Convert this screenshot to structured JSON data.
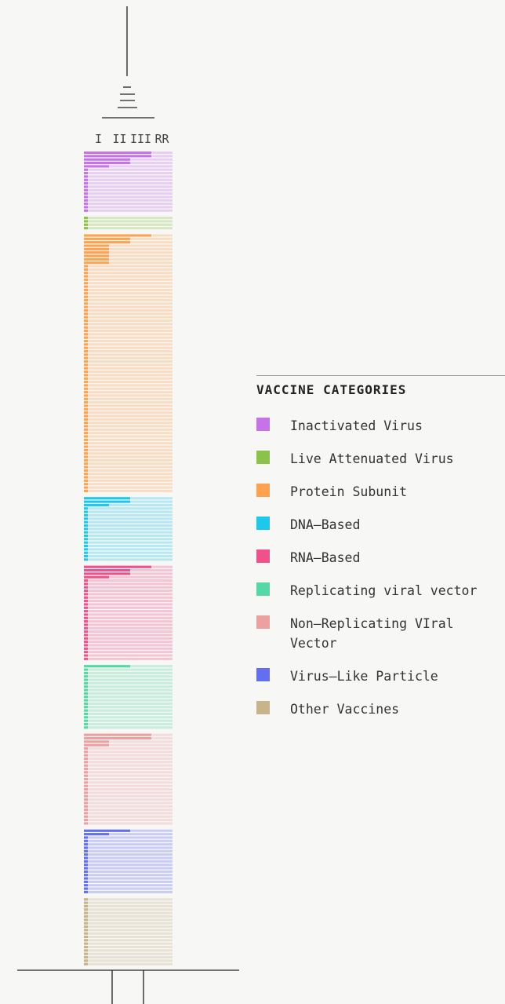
{
  "chart_data": {
    "type": "stacked-rows",
    "legend_title": "VACCINE CATEGORIES",
    "xlim": [
      0,
      4
    ],
    "xticks": [
      {
        "value": 1,
        "label": "I"
      },
      {
        "value": 2,
        "label": "II"
      },
      {
        "value": 3,
        "label": "III"
      },
      {
        "value": 4,
        "label": "RR"
      }
    ],
    "series": [
      {
        "name": "Inactivated Virus",
        "color": "#c673e8",
        "values": [
          3,
          3,
          2,
          2,
          1,
          0,
          0,
          0,
          0,
          0,
          0,
          0,
          0,
          0,
          0,
          0,
          0,
          0
        ]
      },
      {
        "name": "Live Attenuated Virus",
        "color": "#8bc34a",
        "values": [
          0,
          0,
          0,
          0
        ]
      },
      {
        "name": "Protein Subunit",
        "color": "#ffa24f",
        "values": [
          3,
          2,
          2,
          1,
          1,
          1,
          1,
          1,
          1,
          0,
          0,
          0,
          0,
          0,
          0,
          0,
          0,
          0,
          0,
          0,
          0,
          0,
          0,
          0,
          0,
          0,
          0,
          0,
          0,
          0,
          0,
          0,
          0,
          0,
          0,
          0,
          0,
          0,
          0,
          0,
          0,
          0,
          0,
          0,
          0,
          0,
          0,
          0,
          0,
          0,
          0,
          0,
          0,
          0,
          0,
          0,
          0,
          0,
          0,
          0,
          0,
          0,
          0,
          0,
          0,
          0,
          0,
          0,
          0,
          0,
          0,
          0,
          0,
          0,
          0,
          0
        ]
      },
      {
        "name": "DNA–Based",
        "color": "#1ec8ea",
        "values": [
          2,
          2,
          1,
          0,
          0,
          0,
          0,
          0,
          0,
          0,
          0,
          0,
          0,
          0,
          0,
          0,
          0,
          0,
          0
        ]
      },
      {
        "name": "RNA–Based",
        "color": "#f0508c",
        "values": [
          3,
          2,
          2,
          1,
          0,
          0,
          0,
          0,
          0,
          0,
          0,
          0,
          0,
          0,
          0,
          0,
          0,
          0,
          0,
          0,
          0,
          0,
          0,
          0,
          0,
          0,
          0,
          0
        ]
      },
      {
        "name": "Replicating viral vector",
        "color": "#55d8a5",
        "values": [
          2,
          0,
          0,
          0,
          0,
          0,
          0,
          0,
          0,
          0,
          0,
          0,
          0,
          0,
          0,
          0,
          0,
          0,
          0
        ]
      },
      {
        "name": "Non–Replicating VIral Vector",
        "color": "#eca0a0",
        "values": [
          3,
          3,
          1,
          1,
          0,
          0,
          0,
          0,
          0,
          0,
          0,
          0,
          0,
          0,
          0,
          0,
          0,
          0,
          0,
          0,
          0,
          0,
          0,
          0,
          0,
          0,
          0
        ]
      },
      {
        "name": "Virus–Like Particle",
        "color": "#636ef0",
        "values": [
          2,
          1,
          0,
          0,
          0,
          0,
          0,
          0,
          0,
          0,
          0,
          0,
          0,
          0,
          0,
          0,
          0,
          0,
          0
        ]
      },
      {
        "name": "Other Vaccines",
        "color": "#c8b48a",
        "values": [
          0,
          0,
          0,
          0,
          0,
          0,
          0,
          0,
          0,
          0,
          0,
          0,
          0,
          0,
          0,
          0,
          0,
          0,
          0,
          0
        ]
      }
    ]
  }
}
